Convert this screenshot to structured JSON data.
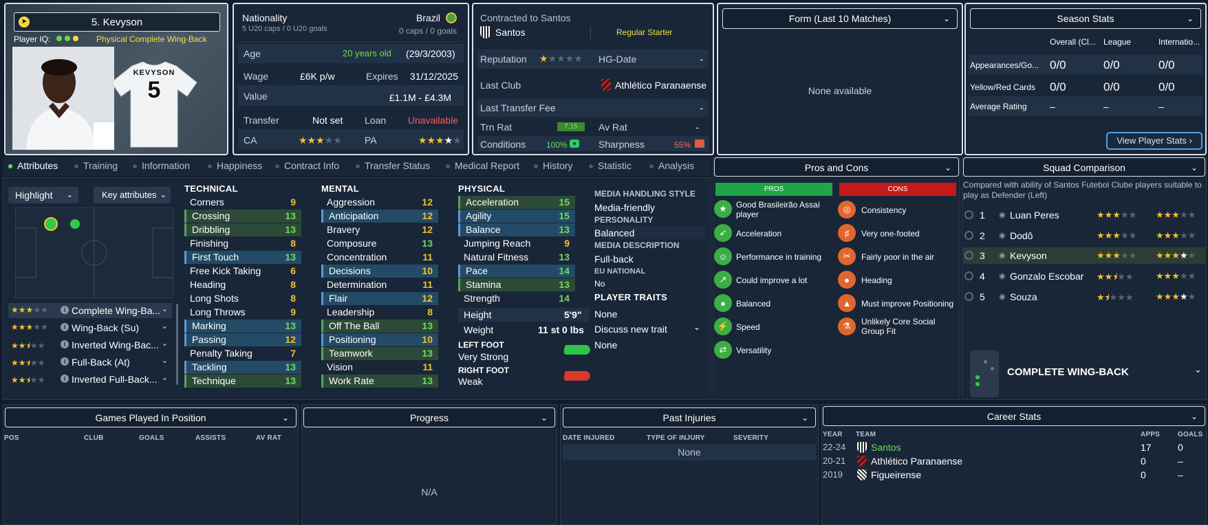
{
  "player": {
    "name": "5. Kevyson",
    "iq_label": "Player IQ:",
    "role": "Physical Complete Wing-Back",
    "shirt_name": "KEVYSON",
    "shirt_number": "5"
  },
  "info": {
    "nationality_label": "Nationality",
    "caps": "5 U20 caps / 0 U20 goals",
    "country": "Brazil",
    "senior_caps": "0 caps / 0 goals",
    "age_label": "Age",
    "age_value": "20 years old",
    "dob": "(29/3/2003)",
    "wage_label": "Wage",
    "wage": "£6K p/w",
    "expires_label": "Expires",
    "expires": "31/12/2025",
    "value_label": "Value",
    "value": "£1.1M - £4.3M",
    "transfer_label": "Transfer",
    "transfer": "Not set",
    "loan_label": "Loan",
    "loan": "Unavailable",
    "ca_label": "CA",
    "pa_label": "PA",
    "ca_stars": 2.5,
    "pa_stars": 3.5
  },
  "contract": {
    "contracted_label": "Contracted to Santos",
    "club": "Santos",
    "status": "Regular Starter",
    "reputation_label": "Reputation",
    "hg_label": "HG-Date",
    "hg_value": "-",
    "last_club_label": "Last Club",
    "last_club": "Athlético Paranaense",
    "last_fee_label": "Last Transfer Fee",
    "last_fee": "-",
    "trn_label": "Trn Rat",
    "trn_value": "7.15",
    "av_label": "Av Rat",
    "av_value": "-",
    "conditions_label": "Conditions",
    "conditions": "100%",
    "sharpness_label": "Sharpness",
    "sharpness": "55%"
  },
  "form": {
    "title": "Form (Last 10 Matches)",
    "empty": "None available"
  },
  "season": {
    "title": "Season Stats",
    "cols": [
      "Overall (Cl...",
      "League",
      "Internatio..."
    ],
    "rows": [
      {
        "label": "Appearances/Go...",
        "vals": [
          "0/0",
          "0/0",
          "0/0"
        ]
      },
      {
        "label": "Yellow/Red Cards",
        "vals": [
          "0/0",
          "0/0",
          "0/0"
        ]
      },
      {
        "label": "Average Rating",
        "vals": [
          "–",
          "–",
          "–"
        ]
      }
    ],
    "button": "View Player Stats ›"
  },
  "tabs": [
    "Attributes",
    "Training",
    "Information",
    "Happiness",
    "Contract Info",
    "Transfer Status",
    "Medical Report",
    "History",
    "Statistic",
    "Analysis"
  ],
  "pitch": {
    "highlight": "Highlight",
    "key_attrs": "Key attributes"
  },
  "roles": [
    {
      "name": "Complete Wing-Ba...",
      "stars": 3
    },
    {
      "name": "Wing-Back (Su)",
      "stars": 3
    },
    {
      "name": "Inverted Wing-Bac...",
      "stars": 2.5
    },
    {
      "name": "Full-Back (At)",
      "stars": 2.5
    },
    {
      "name": "Inverted Full-Back...",
      "stars": 2.5
    }
  ],
  "technical": {
    "title": "TECHNICAL",
    "items": [
      {
        "n": "Corners",
        "v": "9"
      },
      {
        "n": "Crossing",
        "v": "13"
      },
      {
        "n": "Dribbling",
        "v": "13"
      },
      {
        "n": "Finishing",
        "v": "8"
      },
      {
        "n": "First Touch",
        "v": "13"
      },
      {
        "n": "Free Kick Taking",
        "v": "6"
      },
      {
        "n": "Heading",
        "v": "8"
      },
      {
        "n": "Long Shots",
        "v": "8"
      },
      {
        "n": "Long Throws",
        "v": "9"
      },
      {
        "n": "Marking",
        "v": "13"
      },
      {
        "n": "Passing",
        "v": "12"
      },
      {
        "n": "Penalty Taking",
        "v": "7"
      },
      {
        "n": "Tackling",
        "v": "13"
      },
      {
        "n": "Technique",
        "v": "13"
      }
    ]
  },
  "mental": {
    "title": "MENTAL",
    "items": [
      {
        "n": "Aggression",
        "v": "12"
      },
      {
        "n": "Anticipation",
        "v": "12"
      },
      {
        "n": "Bravery",
        "v": "12"
      },
      {
        "n": "Composure",
        "v": "13"
      },
      {
        "n": "Concentration",
        "v": "11"
      },
      {
        "n": "Decisions",
        "v": "10"
      },
      {
        "n": "Determination",
        "v": "11"
      },
      {
        "n": "Flair",
        "v": "12"
      },
      {
        "n": "Leadership",
        "v": "8"
      },
      {
        "n": "Off The Ball",
        "v": "13"
      },
      {
        "n": "Positioning",
        "v": "10"
      },
      {
        "n": "Teamwork",
        "v": "13"
      },
      {
        "n": "Vision",
        "v": "11"
      },
      {
        "n": "Work Rate",
        "v": "13"
      }
    ]
  },
  "physical": {
    "title": "PHYSICAL",
    "items": [
      {
        "n": "Acceleration",
        "v": "15"
      },
      {
        "n": "Agility",
        "v": "15"
      },
      {
        "n": "Balance",
        "v": "13"
      },
      {
        "n": "Jumping Reach",
        "v": "9"
      },
      {
        "n": "Natural Fitness",
        "v": "13"
      },
      {
        "n": "Pace",
        "v": "14"
      },
      {
        "n": "Stamina",
        "v": "13"
      },
      {
        "n": "Strength",
        "v": "14"
      }
    ],
    "height_label": "Height",
    "height": "5'9\"",
    "weight_label": "Weight",
    "weight": "11 st 0 lbs",
    "left_foot_label": "LEFT FOOT",
    "left_foot": "Very Strong",
    "right_foot_label": "RIGHT FOOT",
    "right_foot": "Weak"
  },
  "media": {
    "style_label": "MEDIA HANDLING STYLE",
    "style": "Media-friendly",
    "personality_label": "PERSONALITY",
    "personality": "Balanced",
    "desc_label": "MEDIA DESCRIPTION",
    "desc": "Full-back",
    "eu_label": "EU NATIONAL",
    "eu": "No",
    "traits_label": "PLAYER TRAITS",
    "traits": "None",
    "discuss": "Discuss new trait",
    "discuss_val": "None"
  },
  "pros_cons": {
    "title": "Pros and Cons",
    "pros_label": "PROS",
    "cons_label": "CONS",
    "pros": [
      "Good Brasileirão Assaí player",
      "Acceleration",
      "Performance in training",
      "Could improve a lot",
      "Balanced",
      "Speed",
      "Versatility"
    ],
    "cons": [
      "Consistency",
      "Very one-footed",
      "Fairly poor in the air",
      "Heading",
      "Must improve Positioning",
      "Unlikely Core Social Group Fit"
    ]
  },
  "squad": {
    "title": "Squad Comparison",
    "subtitle": "Compared with ability of Santos Futebol Clube players suitable to play as Defender (Left)",
    "rows": [
      {
        "rank": "1",
        "name": "Luan Peres",
        "a": 3,
        "b": 3
      },
      {
        "rank": "2",
        "name": "Dodô",
        "a": 3,
        "b": 3
      },
      {
        "rank": "3",
        "name": "Kevyson",
        "a": 3,
        "b": 3.5
      },
      {
        "rank": "4",
        "name": "Gonzalo Escobar",
        "a": 2.5,
        "b": 3
      },
      {
        "rank": "5",
        "name": "Souza",
        "a": 1.5,
        "b": 3.5
      }
    ],
    "position": "COMPLETE WING-BACK"
  },
  "games": {
    "title": "Games Played In Position",
    "cols": [
      "POS",
      "CLUB",
      "GOALS",
      "ASSISTS",
      "AV RAT"
    ]
  },
  "progress": {
    "title": "Progress",
    "empty": "N/A"
  },
  "injuries": {
    "title": "Past Injuries",
    "cols": [
      "DATE INJURED",
      "TYPE OF INJURY",
      "SEVERITY"
    ],
    "empty": "None"
  },
  "career": {
    "title": "Career Stats",
    "cols": [
      "YEAR",
      "TEAM",
      "APPS",
      "GOALS"
    ],
    "rows": [
      {
        "year": "22-24",
        "team": "Santos",
        "apps": "17",
        "goals": "0"
      },
      {
        "year": "20-21",
        "team": "Athlético Paranaense",
        "apps": "0",
        "goals": "–"
      },
      {
        "year": "2019",
        "team": "Figueirense",
        "apps": "0",
        "goals": "–"
      }
    ]
  },
  "colors": {
    "accent_green": "#6fdc5a",
    "accent_yellow": "#f2c12e",
    "pros_green": "#1ea646",
    "cons_red": "#c41a1a",
    "unavailable_red": "#ff5656"
  }
}
